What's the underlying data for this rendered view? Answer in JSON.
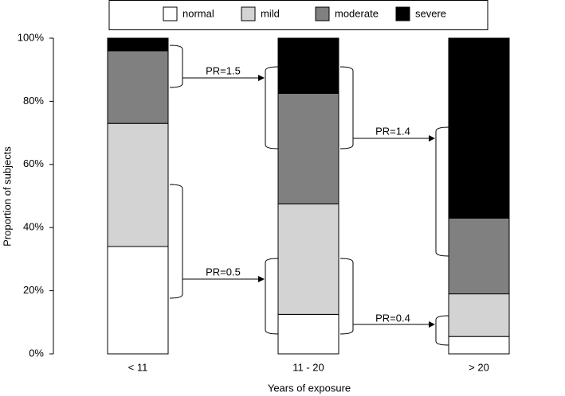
{
  "chart_data": {
    "type": "stacked-bar",
    "categories": [
      "< 11",
      "11 - 20",
      "> 20"
    ],
    "series": [
      {
        "name": "normal",
        "color": "#ffffff",
        "values": [
          34,
          12.5,
          5.5
        ]
      },
      {
        "name": "mild",
        "color": "#d3d3d3",
        "values": [
          39,
          35,
          13.5
        ]
      },
      {
        "name": "moderate",
        "color": "#808080",
        "values": [
          23,
          35,
          24
        ]
      },
      {
        "name": "severe",
        "color": "#000000",
        "values": [
          4,
          17.5,
          57
        ]
      }
    ],
    "ylim": [
      0,
      100
    ],
    "yticks": [
      {
        "value": 0,
        "label": "0%"
      },
      {
        "value": 20,
        "label": "20%"
      },
      {
        "value": 40,
        "label": "40%"
      },
      {
        "value": 60,
        "label": "60%"
      },
      {
        "value": 80,
        "label": "80%"
      },
      {
        "value": 100,
        "label": "100%"
      }
    ],
    "xlabel": "Years of exposure",
    "ylabel": "Proportion of subjects",
    "annotations": [
      "PR=1.5",
      "PR=0.5",
      "PR=1.4",
      "PR=0.4"
    ],
    "legend": "top"
  }
}
